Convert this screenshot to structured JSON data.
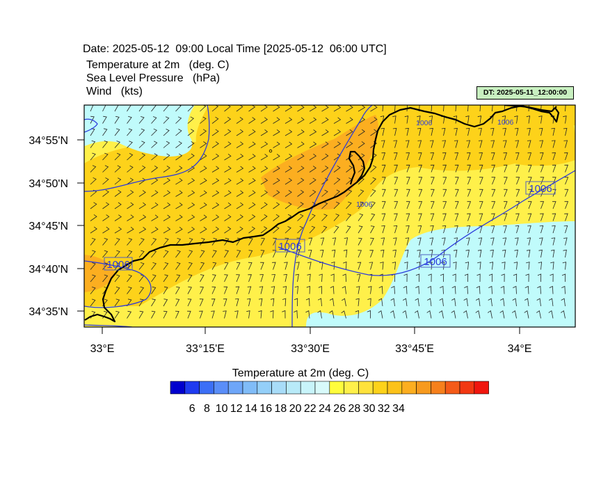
{
  "header": {
    "date_line": "Date: 2025-05-12  09:00 Local Time [2025-05-12  06:00 UTC]",
    "field1": "Temperature at 2m   (deg. C)",
    "field2": "Sea Level Pressure   (hPa)",
    "field3": "Wind   (kts)",
    "dt_badge": "DT: 2025-05-11_12:00:00"
  },
  "map": {
    "x_ticks": [
      "33°E",
      "33°15'E",
      "33°30'E",
      "33°45'E",
      "34°E"
    ],
    "y_ticks": [
      "34°55'N",
      "34°50'N",
      "34°45'N",
      "34°40'N",
      "34°35'N"
    ],
    "isobar_labels": [
      "1006",
      "1006",
      "1006",
      "1006",
      "1006",
      "1006",
      "1006"
    ],
    "colors": {
      "cold": "#c0fbfb",
      "mild": "#fff04a",
      "warm": "#fdd21a",
      "hot": "#fcae20",
      "isobar": "#2b3bdc",
      "coast": "#000000"
    }
  },
  "colorbar": {
    "title": "Temperature at 2m  (deg. C)",
    "labels": [
      "6",
      "8",
      "10",
      "12",
      "14",
      "16",
      "18",
      "20",
      "22",
      "24",
      "26",
      "28",
      "30",
      "32",
      "34"
    ],
    "colors": [
      "#0000ce",
      "#1f3bf0",
      "#3c6ff6",
      "#5a8ef8",
      "#6ea6f8",
      "#80bcf8",
      "#94cff8",
      "#a8dcf8",
      "#b8eaf8",
      "#c8f4fa",
      "#d8fafa",
      "#fffd3c",
      "#fff04a",
      "#ffe23c",
      "#fdd21a",
      "#fcc21a",
      "#fcae20",
      "#f79a1e",
      "#f6801c",
      "#f45a18",
      "#f23812",
      "#f0160e"
    ]
  }
}
